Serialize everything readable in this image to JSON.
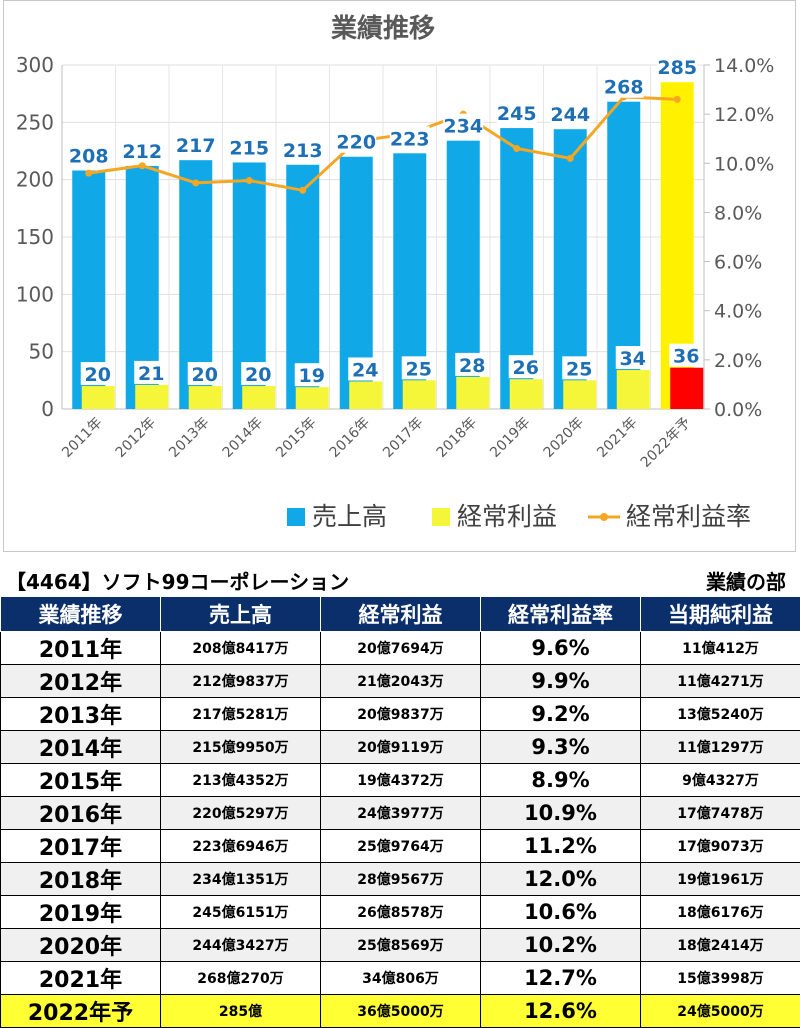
{
  "chart_data": {
    "type": "bar",
    "title": "業績推移",
    "categories": [
      "2011年",
      "2012年",
      "2013年",
      "2014年",
      "2015年",
      "2016年",
      "2017年",
      "2018年",
      "2019年",
      "2020年",
      "2021年",
      "2022年予"
    ],
    "series": [
      {
        "name": "売上高",
        "kind": "bar",
        "axis": "left",
        "color": "#11a8e8",
        "values": [
          208,
          212,
          217,
          215,
          213,
          220,
          223,
          234,
          245,
          244,
          268,
          285
        ],
        "highlight_last_color": "#fff100"
      },
      {
        "name": "経常利益",
        "kind": "bar",
        "axis": "left",
        "color": "#f5f53a",
        "values": [
          20,
          21,
          20,
          20,
          19,
          24,
          25,
          28,
          26,
          25,
          34,
          36
        ],
        "highlight_last_color": "#ff0000"
      },
      {
        "name": "経常利益率",
        "kind": "line",
        "axis": "right",
        "color": "#f5a623",
        "values": [
          9.6,
          9.9,
          9.2,
          9.3,
          8.9,
          10.9,
          11.2,
          12.0,
          10.6,
          10.2,
          12.7,
          12.6
        ]
      }
    ],
    "y_left": {
      "range": [
        0,
        300
      ],
      "ticks": [
        "0",
        "50",
        "100",
        "150",
        "200",
        "250",
        "300"
      ]
    },
    "y_right": {
      "range": [
        0,
        14
      ],
      "ticks": [
        "0.0%",
        "2.0%",
        "4.0%",
        "6.0%",
        "8.0%",
        "10.0%",
        "12.0%",
        "14.0%"
      ]
    },
    "grid": true,
    "legend_position": "bottom-right"
  },
  "captions": {
    "left": "【4464】ソフト99コーポレーション",
    "right": "業績の部"
  },
  "table": {
    "headers": [
      "業績推移",
      "売上高",
      "経常利益",
      "経常利益率",
      "当期純利益"
    ],
    "rows": [
      [
        "2011年",
        "208億8417万",
        "20億7694万",
        "9.6%",
        "11億412万"
      ],
      [
        "2012年",
        "212億9837万",
        "21億2043万",
        "9.9%",
        "11億4271万"
      ],
      [
        "2013年",
        "217億5281万",
        "20億9837万",
        "9.2%",
        "13億5240万"
      ],
      [
        "2014年",
        "215億9950万",
        "20億9119万",
        "9.3%",
        "11億1297万"
      ],
      [
        "2015年",
        "213億4352万",
        "19億4372万",
        "8.9%",
        "9億4327万"
      ],
      [
        "2016年",
        "220億5297万",
        "24億3977万",
        "10.9%",
        "17億7478万"
      ],
      [
        "2017年",
        "223億6946万",
        "25億9764万",
        "11.2%",
        "17億9073万"
      ],
      [
        "2018年",
        "234億1351万",
        "28億9567万",
        "12.0%",
        "19億1961万"
      ],
      [
        "2019年",
        "245億6151万",
        "26億8578万",
        "10.6%",
        "18億6176万"
      ],
      [
        "2020年",
        "244億3427万",
        "25億8569万",
        "10.2%",
        "18億2414万"
      ],
      [
        "2021年",
        "268億270万",
        "34億806万",
        "12.7%",
        "15億3998万"
      ],
      [
        "2022年予",
        "285億",
        "36億5000万",
        "12.6%",
        "24億5000万"
      ]
    ]
  }
}
